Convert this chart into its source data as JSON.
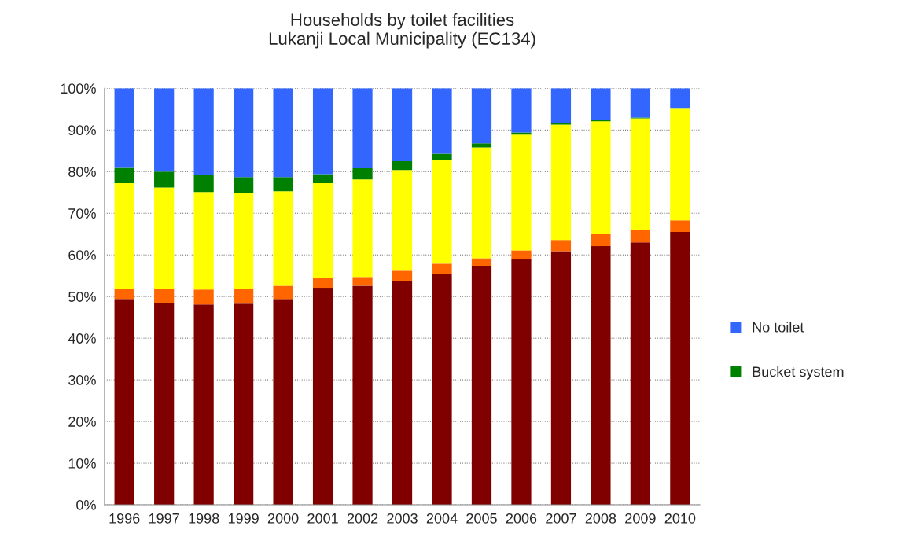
{
  "chart_data": {
    "type": "bar",
    "title": "Households by toilet facilities\nLukanji Local Municipality (EC134)",
    "categories": [
      "1996",
      "1997",
      "1998",
      "1999",
      "2000",
      "2001",
      "2002",
      "2003",
      "2004",
      "2005",
      "2006",
      "2007",
      "2008",
      "2009",
      "2010"
    ],
    "stacked": true,
    "series": [
      {
        "color": "#800000",
        "values": [
          49.4,
          48.5,
          48.1,
          48.3,
          49.4,
          52.1,
          52.6,
          53.8,
          55.5,
          57.4,
          58.9,
          60.9,
          62.1,
          63.0,
          65.5
        ]
      },
      {
        "color": "#ff6600",
        "values": [
          2.5,
          3.4,
          3.6,
          3.6,
          3.2,
          2.4,
          2.1,
          2.4,
          2.4,
          1.8,
          2.2,
          2.7,
          3.0,
          3.0,
          2.8
        ]
      },
      {
        "color": "#ffff00",
        "values": [
          25.3,
          24.3,
          23.4,
          23.0,
          22.7,
          22.7,
          23.4,
          24.2,
          24.9,
          26.6,
          27.8,
          27.7,
          27.0,
          26.8,
          26.8
        ]
      },
      {
        "name": "Bucket system",
        "color": "#008000",
        "values": [
          3.7,
          3.8,
          4.0,
          3.8,
          3.4,
          2.2,
          2.7,
          2.1,
          1.5,
          1.0,
          0.5,
          0.4,
          0.2,
          0.2,
          null
        ]
      },
      {
        "name": "No toilet",
        "color": "#3366ff",
        "values": [
          19.1,
          20.0,
          20.9,
          21.3,
          21.3,
          20.6,
          19.2,
          17.5,
          15.7,
          13.2,
          10.6,
          8.3,
          7.7,
          7.0,
          4.9
        ]
      }
    ],
    "ylim": [
      0,
      100
    ],
    "yticks": [
      {
        "value": 0,
        "label": "0%"
      },
      {
        "value": 10,
        "label": "10%"
      },
      {
        "value": 20,
        "label": "20%"
      },
      {
        "value": 30,
        "label": "30%"
      },
      {
        "value": 40,
        "label": "40%"
      },
      {
        "value": 50,
        "label": "50%"
      },
      {
        "value": 60,
        "label": "60%"
      },
      {
        "value": 70,
        "label": "70%"
      },
      {
        "value": 80,
        "label": "80%"
      },
      {
        "value": 90,
        "label": "90%"
      },
      {
        "value": 100,
        "label": "100%"
      }
    ],
    "grid": "y",
    "legend": "right"
  }
}
